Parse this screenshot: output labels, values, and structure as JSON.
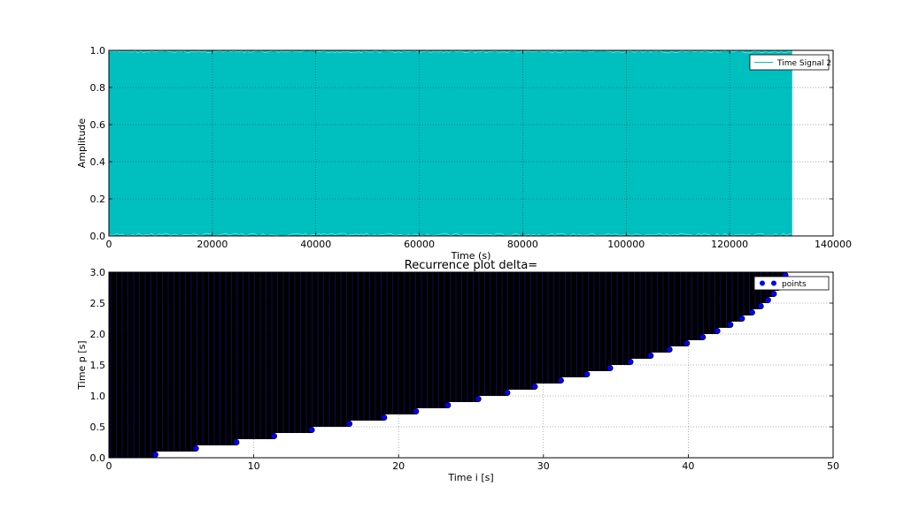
{
  "chart_data": [
    {
      "type": "line",
      "title": "",
      "xlabel": "Time (s)",
      "ylabel": "Amplitude",
      "xlim": [
        0,
        140000
      ],
      "ylim": [
        0.0,
        1.0
      ],
      "xticks": [
        0,
        20000,
        40000,
        60000,
        80000,
        100000,
        120000,
        140000
      ],
      "yticks": [
        0.0,
        0.2,
        0.4,
        0.6,
        0.8,
        1.0
      ],
      "grid": true,
      "legend_position": "top-right",
      "series": [
        {
          "name": "Time Signal 2",
          "color": "#00bfbf",
          "x_range": [
            0,
            132000
          ],
          "y_range": [
            0.0,
            1.0
          ],
          "description_values": "dense oscillation filling 0.0 to 1.0"
        }
      ]
    },
    {
      "type": "scatter",
      "title": "Recurrence plot delta=",
      "xlabel": "Time i [s]",
      "ylabel": "Time p [s]",
      "xlim": [
        0,
        50
      ],
      "ylim": [
        0.0,
        3.0
      ],
      "xticks": [
        0,
        10,
        20,
        30,
        40,
        50
      ],
      "yticks": [
        0.0,
        0.5,
        1.0,
        1.5,
        2.0,
        2.5,
        3.0
      ],
      "grid": true,
      "legend_position": "top-right",
      "series": [
        {
          "name": "points",
          "color": "#0000ff",
          "rows_y": [
            0.0,
            0.1,
            0.2,
            0.3,
            0.4,
            0.5,
            0.6,
            0.7,
            0.8,
            0.9,
            1.0,
            1.1,
            1.2,
            1.3,
            1.4,
            1.5,
            1.6,
            1.7,
            1.8,
            1.9,
            2.0,
            2.1,
            2.2,
            2.3,
            2.4,
            2.5,
            2.6,
            2.7,
            2.8,
            2.9
          ],
          "rows_x_end": [
            3.2,
            6.0,
            8.8,
            11.4,
            14.0,
            16.6,
            19.0,
            21.2,
            23.4,
            25.5,
            27.5,
            29.4,
            31.2,
            33.0,
            34.6,
            36.0,
            37.4,
            38.7,
            39.9,
            41.0,
            42.0,
            42.9,
            43.7,
            44.4,
            45.0,
            45.5,
            45.9,
            46.2,
            46.5,
            46.7
          ]
        }
      ]
    }
  ]
}
